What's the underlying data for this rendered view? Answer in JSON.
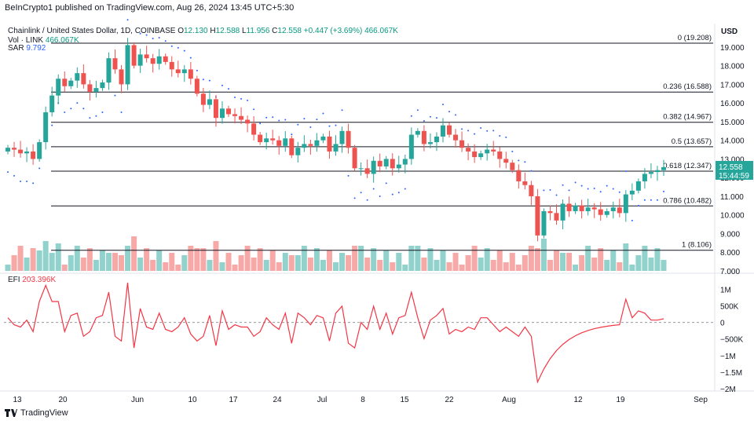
{
  "header": {
    "published": "BeInCrypto1 published on TradingView.com, Aug 26, 2024 13:45 UTC+5:30"
  },
  "legend": {
    "symbol": "Chainlink / United States Dollar, 1D, COINBASE",
    "o_label": "O",
    "o": "12.130",
    "h_label": "H",
    "h": "12.588",
    "l_label": "L",
    "l": "11.956",
    "c_label": "C",
    "c": "12.558",
    "chg": "+0.447 (+3.69%)",
    "vol_text": "466.067K",
    "vol_label": "Vol · LINK",
    "vol_value": "466.067K",
    "sar_label": "SAR",
    "sar_value": "9.792"
  },
  "currency": "USD",
  "efi": {
    "label": "EFI",
    "value": "203.396K"
  },
  "footer": {
    "brand": "TradingView"
  },
  "colors": {
    "up": "#26a69a",
    "down": "#ef5350",
    "sar": "#2962ff",
    "efi": "#f23645"
  },
  "price_label": {
    "price": "12.558",
    "countdown": "15:44:59"
  },
  "chart_data": {
    "type": "candlestick",
    "x_ticks": [
      "13",
      "20",
      "Jun",
      "10",
      "17",
      "24",
      "Jul",
      "8",
      "15",
      "22",
      "Aug",
      "12",
      "19",
      "Sep"
    ],
    "ylim": [
      7.0,
      19.5
    ],
    "y_ticks": [
      "19.000",
      "18.000",
      "17.000",
      "16.000",
      "15.000",
      "14.000",
      "13.000",
      "12.000",
      "11.000",
      "10.000",
      "9.000",
      "8.000",
      "7.000"
    ],
    "fib_levels": [
      {
        "label": "0 (19.208)",
        "value": 19.208
      },
      {
        "label": "0.236 (16.588)",
        "value": 16.588
      },
      {
        "label": "0.382 (14.967)",
        "value": 14.967
      },
      {
        "label": "0.5 (13.657)",
        "value": 13.657
      },
      {
        "label": "0.618 (12.347)",
        "value": 12.347
      },
      {
        "label": "0.786 (10.482)",
        "value": 10.482
      },
      {
        "label": "1 (8.106)",
        "value": 8.106
      }
    ],
    "efi_ticks": [
      "1M",
      "500K",
      "0",
      "−500K",
      "−1M",
      "−1.5M",
      "−2M"
    ],
    "efi_range": [
      -2000000,
      1200000
    ],
    "closes": [
      13.6,
      13.5,
      13.3,
      13.4,
      13.0,
      13.9,
      15.5,
      16.4,
      17.3,
      16.9,
      17.2,
      17.6,
      17.0,
      16.6,
      16.8,
      17.1,
      18.4,
      17.8,
      17.0,
      19.1,
      18.0,
      18.6,
      18.4,
      18.1,
      18.5,
      18.2,
      17.8,
      17.6,
      17.8,
      17.3,
      16.5,
      15.9,
      16.2,
      15.2,
      15.7,
      15.4,
      15.3,
      15.1,
      14.9,
      14.3,
      13.9,
      14.1,
      14.0,
      13.7,
      14.1,
      13.2,
      13.6,
      13.8,
      13.7,
      14.0,
      14.2,
      13.4,
      13.8,
      14.5,
      13.6,
      12.5,
      12.5,
      12.2,
      12.9,
      12.6,
      13.0,
      12.5,
      12.7,
      13.0,
      14.3,
      14.5,
      13.8,
      13.9,
      14.2,
      14.8,
      14.3,
      14.0,
      13.6,
      13.4,
      13.1,
      13.3,
      13.5,
      13.4,
      13.0,
      12.8,
      12.4,
      11.8,
      11.6,
      11.0,
      8.9,
      10.2,
      10.1,
      9.7,
      10.6,
      10.2,
      10.5,
      10.2,
      10.4,
      10.3,
      10.0,
      10.2,
      10.4,
      10.1,
      11.1,
      11.3,
      11.8,
      12.2,
      12.3,
      12.4,
      12.558
    ],
    "sar_start": 9.792
  }
}
